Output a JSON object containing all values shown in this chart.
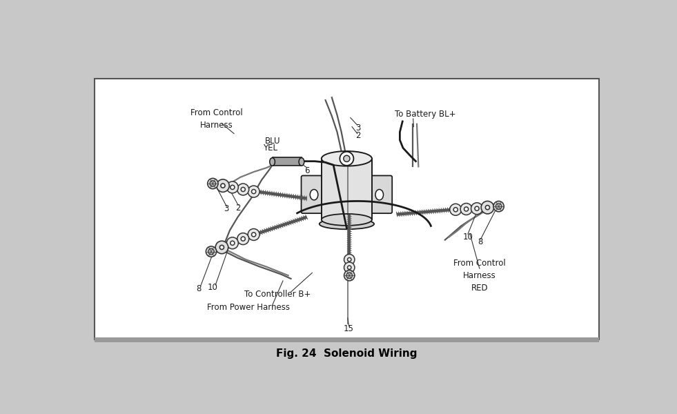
{
  "title": "Fig. 24  Solenoid Wiring",
  "bg_outer": "#c8c8c8",
  "bg_box": "#ffffff",
  "lc": "#1a1a1a",
  "labels": {
    "from_power_harness": "From Power Harness",
    "to_controller": "To Controller B+",
    "num_15": "15",
    "num_8_left": "8",
    "num_10_left": "10",
    "num_3_left": "3",
    "num_2_left": "2",
    "num_6": "6",
    "yel": "YEL",
    "blu": "BLU",
    "from_control_harness_left": "From Control\nHarness",
    "from_control_harness_right": "From Control\nHarness\nRED",
    "num_10_right": "10",
    "num_8_right": "8",
    "num_2_right": "2",
    "num_3_right": "3",
    "to_battery": "To Battery BL+"
  },
  "fs_label": 8.5,
  "fs_num": 8.5,
  "fs_title": 11
}
